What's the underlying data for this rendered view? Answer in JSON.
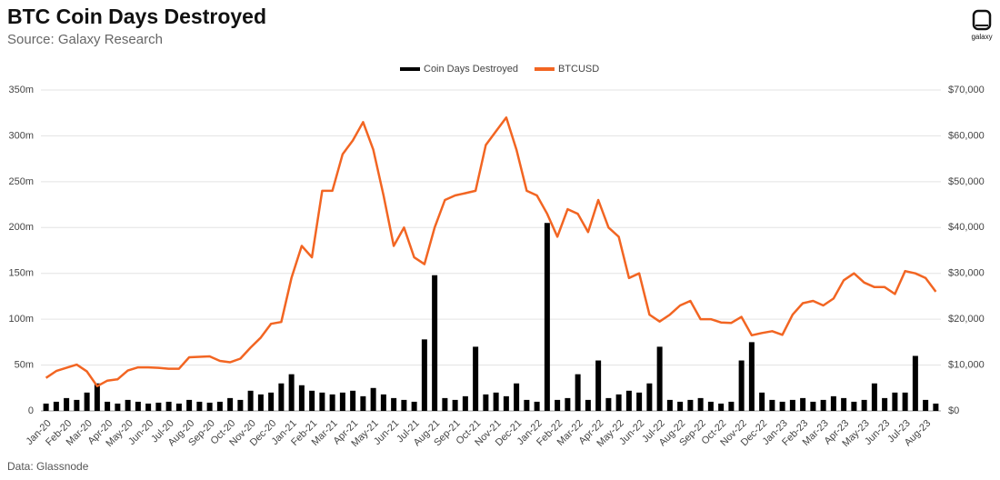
{
  "header": {
    "title": "BTC Coin Days Destroyed",
    "subtitle": "Source: Galaxy Research",
    "logo": "galaxy"
  },
  "footer": {
    "source": "Data: Glassnode"
  },
  "chart_data": {
    "type": "combo",
    "categories": [
      "Jan-20",
      null,
      "Feb-20",
      null,
      "Mar-20",
      null,
      "Apr-20",
      null,
      "May-20",
      null,
      "Jun-20",
      null,
      "Jul-20",
      null,
      "Aug-20",
      null,
      "Sep-20",
      null,
      "Oct-20",
      null,
      "Nov-20",
      null,
      "Dec-20",
      null,
      "Jan-21",
      null,
      "Feb-21",
      null,
      "Mar-21",
      null,
      "Apr-21",
      null,
      "May-21",
      null,
      "Jun-21",
      null,
      "Jul-21",
      null,
      "Aug-21",
      null,
      "Sep-21",
      null,
      "Oct-21",
      null,
      "Nov-21",
      null,
      "Dec-21",
      null,
      "Jan-22",
      null,
      "Feb-22",
      null,
      "Mar-22",
      null,
      "Apr-22",
      null,
      "May-22",
      null,
      "Jun-22",
      null,
      "Jul-22",
      null,
      "Aug-22",
      null,
      "Sep-22",
      null,
      "Oct-22",
      null,
      "Nov-22",
      null,
      "Dec-22",
      null,
      "Jan-23",
      null,
      "Feb-23",
      null,
      "Mar-23",
      null,
      "Apr-23",
      null,
      "May-23",
      null,
      "Jun-23",
      null,
      "Jul-23",
      null,
      "Aug-23",
      null
    ],
    "series": [
      {
        "name": "Coin Days Destroyed",
        "type": "bar",
        "color": "#000000",
        "values": [
          8,
          10,
          14,
          12,
          20,
          30,
          10,
          8,
          12,
          10,
          8,
          9,
          10,
          8,
          12,
          10,
          9,
          10,
          14,
          12,
          22,
          18,
          20,
          30,
          40,
          28,
          22,
          20,
          18,
          20,
          22,
          16,
          25,
          18,
          14,
          12,
          10,
          78,
          148,
          14,
          12,
          16,
          70,
          18,
          20,
          16,
          30,
          12,
          10,
          205,
          12,
          14,
          40,
          12,
          55,
          14,
          18,
          22,
          20,
          30,
          70,
          12,
          10,
          12,
          14,
          10,
          8,
          10,
          55,
          75,
          20,
          12,
          10,
          12,
          14,
          10,
          12,
          16,
          14,
          10,
          12,
          30,
          14,
          20,
          20,
          60,
          12,
          8
        ]
      },
      {
        "name": "BTCUSD",
        "type": "line",
        "axis": "y2",
        "color": "#f26522",
        "values": [
          7200,
          8700,
          9400,
          10100,
          8600,
          5400,
          6600,
          6900,
          8800,
          9500,
          9500,
          9400,
          9200,
          9200,
          11700,
          11800,
          11900,
          10900,
          10600,
          11400,
          13800,
          16000,
          19000,
          19400,
          29000,
          36000,
          33500,
          48000,
          48000,
          56000,
          59000,
          63000,
          57000,
          47000,
          36000,
          40000,
          33500,
          32000,
          40000,
          46000,
          47000,
          47500,
          48000,
          58000,
          61000,
          64000,
          57000,
          48000,
          47000,
          43000,
          38000,
          44000,
          43000,
          39000,
          46000,
          40000,
          38000,
          29000,
          30000,
          21000,
          19500,
          21000,
          23000,
          24000,
          20000,
          20000,
          19300,
          19200,
          20500,
          16500,
          17000,
          17400,
          16600,
          21000,
          23500,
          24000,
          23000,
          24500,
          28500,
          30000,
          28000,
          27000,
          27000,
          25500,
          30500,
          30000,
          29000,
          26000
        ]
      }
    ],
    "ylim": [
      0,
      350
    ],
    "yticks": [
      0,
      {
        "value": 50,
        "label": "50m"
      },
      {
        "value": 100,
        "label": "100m"
      },
      {
        "value": 150,
        "label": "150m"
      },
      {
        "value": 200,
        "label": "200m"
      },
      {
        "value": 250,
        "label": "250m"
      },
      {
        "value": 300,
        "label": "300m"
      },
      {
        "value": 350,
        "label": "350m"
      }
    ],
    "y2lim": [
      0,
      70000
    ],
    "y2ticks": [
      {
        "value": 0,
        "label": "$0"
      },
      {
        "value": 10000,
        "label": "$10,000"
      },
      {
        "value": 20000,
        "label": "$20,000"
      },
      {
        "value": 30000,
        "label": "$30,000"
      },
      {
        "value": 40000,
        "label": "$40,000"
      },
      {
        "value": 50000,
        "label": "$50,000"
      },
      {
        "value": 60000,
        "label": "$60,000"
      },
      {
        "value": 70000,
        "label": "$70,000"
      }
    ],
    "grid": true,
    "legend": "top"
  }
}
